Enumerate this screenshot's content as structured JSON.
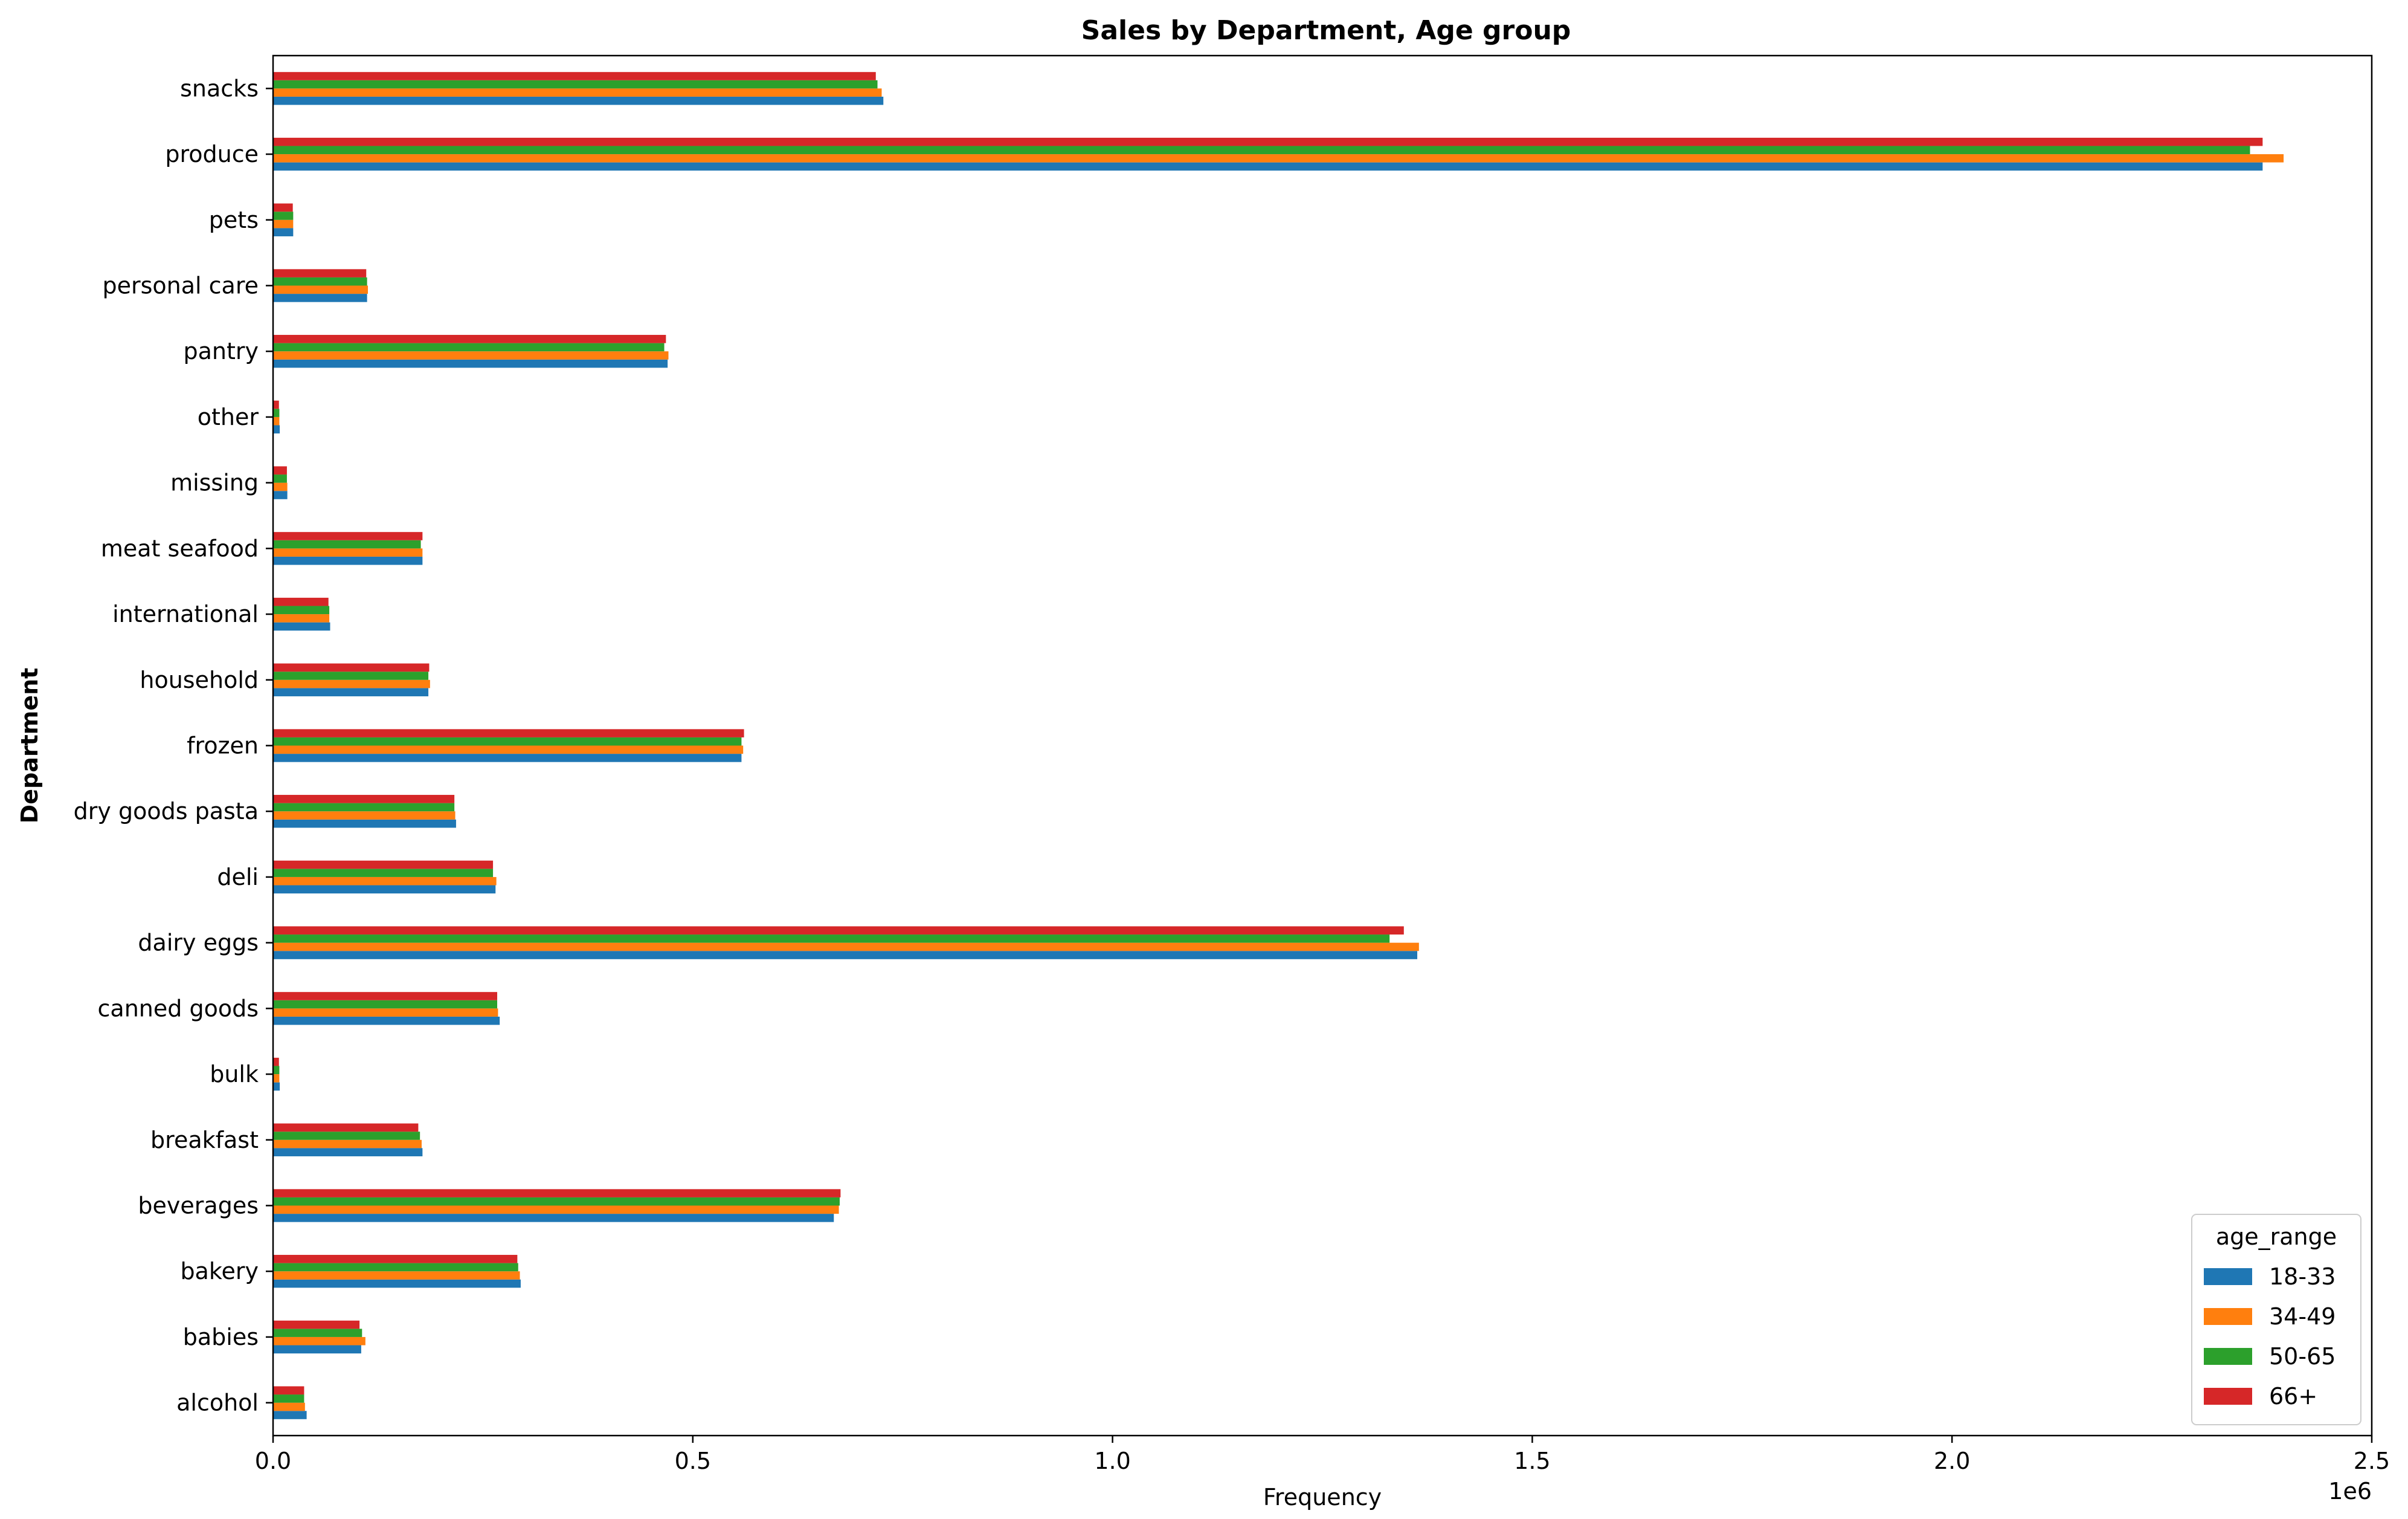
{
  "chart_data": {
    "type": "bar",
    "orientation": "horizontal",
    "title": "Sales by Department, Age group",
    "xlabel": "Frequency",
    "ylabel": "Department",
    "x_offset_label": "1e6",
    "xlim": [
      0,
      2500000
    ],
    "xticks": [
      0,
      500000,
      1000000,
      1500000,
      2000000,
      2500000
    ],
    "xtick_labels": [
      "0.0",
      "0.5",
      "1.0",
      "1.5",
      "2.0",
      "2.5"
    ],
    "grid": false,
    "legend": {
      "title": "age_range",
      "placement": "lower-right"
    },
    "categories": [
      "alcohol",
      "babies",
      "bakery",
      "beverages",
      "breakfast",
      "bulk",
      "canned goods",
      "dairy eggs",
      "deli",
      "dry goods pasta",
      "frozen",
      "household",
      "international",
      "meat seafood",
      "missing",
      "other",
      "pantry",
      "personal care",
      "pets",
      "produce",
      "snacks"
    ],
    "series": [
      {
        "name": "18-33",
        "color": "#1f77b4",
        "values": [
          40000,
          105000,
          295000,
          668000,
          178000,
          8000,
          270000,
          1363000,
          265000,
          218000,
          558000,
          185000,
          68000,
          178000,
          17000,
          8000,
          470000,
          112000,
          24000,
          2370000,
          727000
        ]
      },
      {
        "name": "34-49",
        "color": "#ff7f0e",
        "values": [
          38000,
          110000,
          294000,
          674000,
          177000,
          7500,
          268000,
          1365000,
          266000,
          217000,
          560000,
          187000,
          67000,
          178000,
          17000,
          7500,
          471000,
          113000,
          24000,
          2395000,
          725000
        ]
      },
      {
        "name": "50-65",
        "color": "#2ca02c",
        "values": [
          37000,
          106000,
          292000,
          675000,
          175000,
          7500,
          267000,
          1330000,
          262000,
          216000,
          558000,
          185000,
          67000,
          176000,
          16500,
          7500,
          466000,
          112000,
          24000,
          2355000,
          720000
        ]
      },
      {
        "name": "66+",
        "color": "#d62728",
        "values": [
          37000,
          103000,
          291000,
          676000,
          173000,
          7000,
          267000,
          1347000,
          262000,
          216000,
          561000,
          186000,
          66000,
          178000,
          16500,
          7000,
          468000,
          111000,
          23500,
          2370000,
          718000
        ]
      }
    ]
  }
}
